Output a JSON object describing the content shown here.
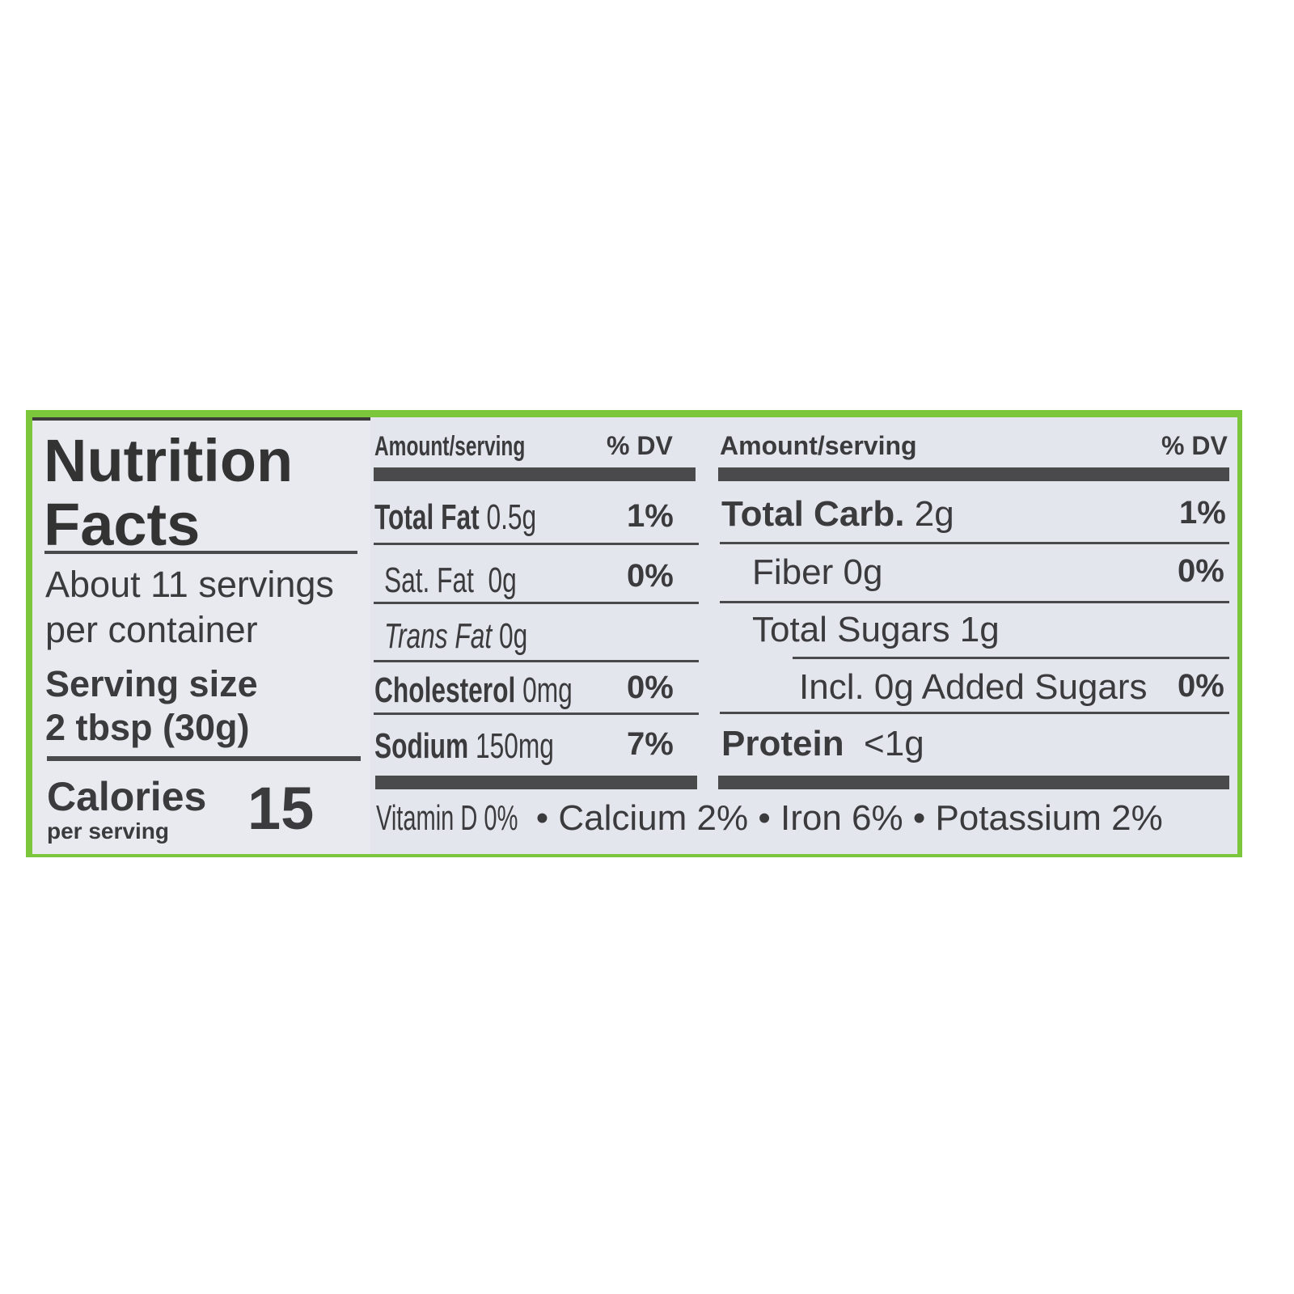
{
  "title": [
    "Nutrition",
    "Facts"
  ],
  "servings": [
    "About 11 servings",
    "per container"
  ],
  "serving_size": {
    "label": "Serving size",
    "value": "2 tbsp (30g)"
  },
  "calories": {
    "label": "Calories",
    "sublabel": "per serving",
    "value": "15"
  },
  "left_table": {
    "header_amount": "Amount/serving",
    "header_dv": "% DV",
    "rows": [
      {
        "name": "Total Fat",
        "amount": "0.5g",
        "dv": "1%"
      },
      {
        "name": "Sat. Fat",
        "amount": "0g",
        "dv": "0%"
      },
      {
        "name": "Trans Fat",
        "amount": "0g",
        "dv": ""
      },
      {
        "name": "Cholesterol",
        "amount": "0mg",
        "dv": "0%"
      },
      {
        "name": "Sodium",
        "amount": "150mg",
        "dv": "7%"
      }
    ]
  },
  "right_table": {
    "header_amount": "Amount/serving",
    "header_dv": "% DV",
    "rows": [
      {
        "name": "Total Carb.",
        "amount": "2g",
        "dv": "1%"
      },
      {
        "name": "Fiber 0g",
        "amount": "",
        "dv": "0%"
      },
      {
        "name": "Total Sugars 1g",
        "amount": "",
        "dv": ""
      },
      {
        "name": "Incl. 0g Added Sugars",
        "amount": "",
        "dv": "0%"
      },
      {
        "name": "Protein",
        "amount": "<1g",
        "dv": ""
      }
    ]
  },
  "vitamins": {
    "vitamin_d": "Vitamin D 0%",
    "rest": "• Calcium 2% • Iron 6% • Potassium 2%"
  },
  "colors": {
    "border_green": "#7cc63c",
    "label_bg": "#e4e6ee",
    "ink": "#3b3b3d"
  }
}
